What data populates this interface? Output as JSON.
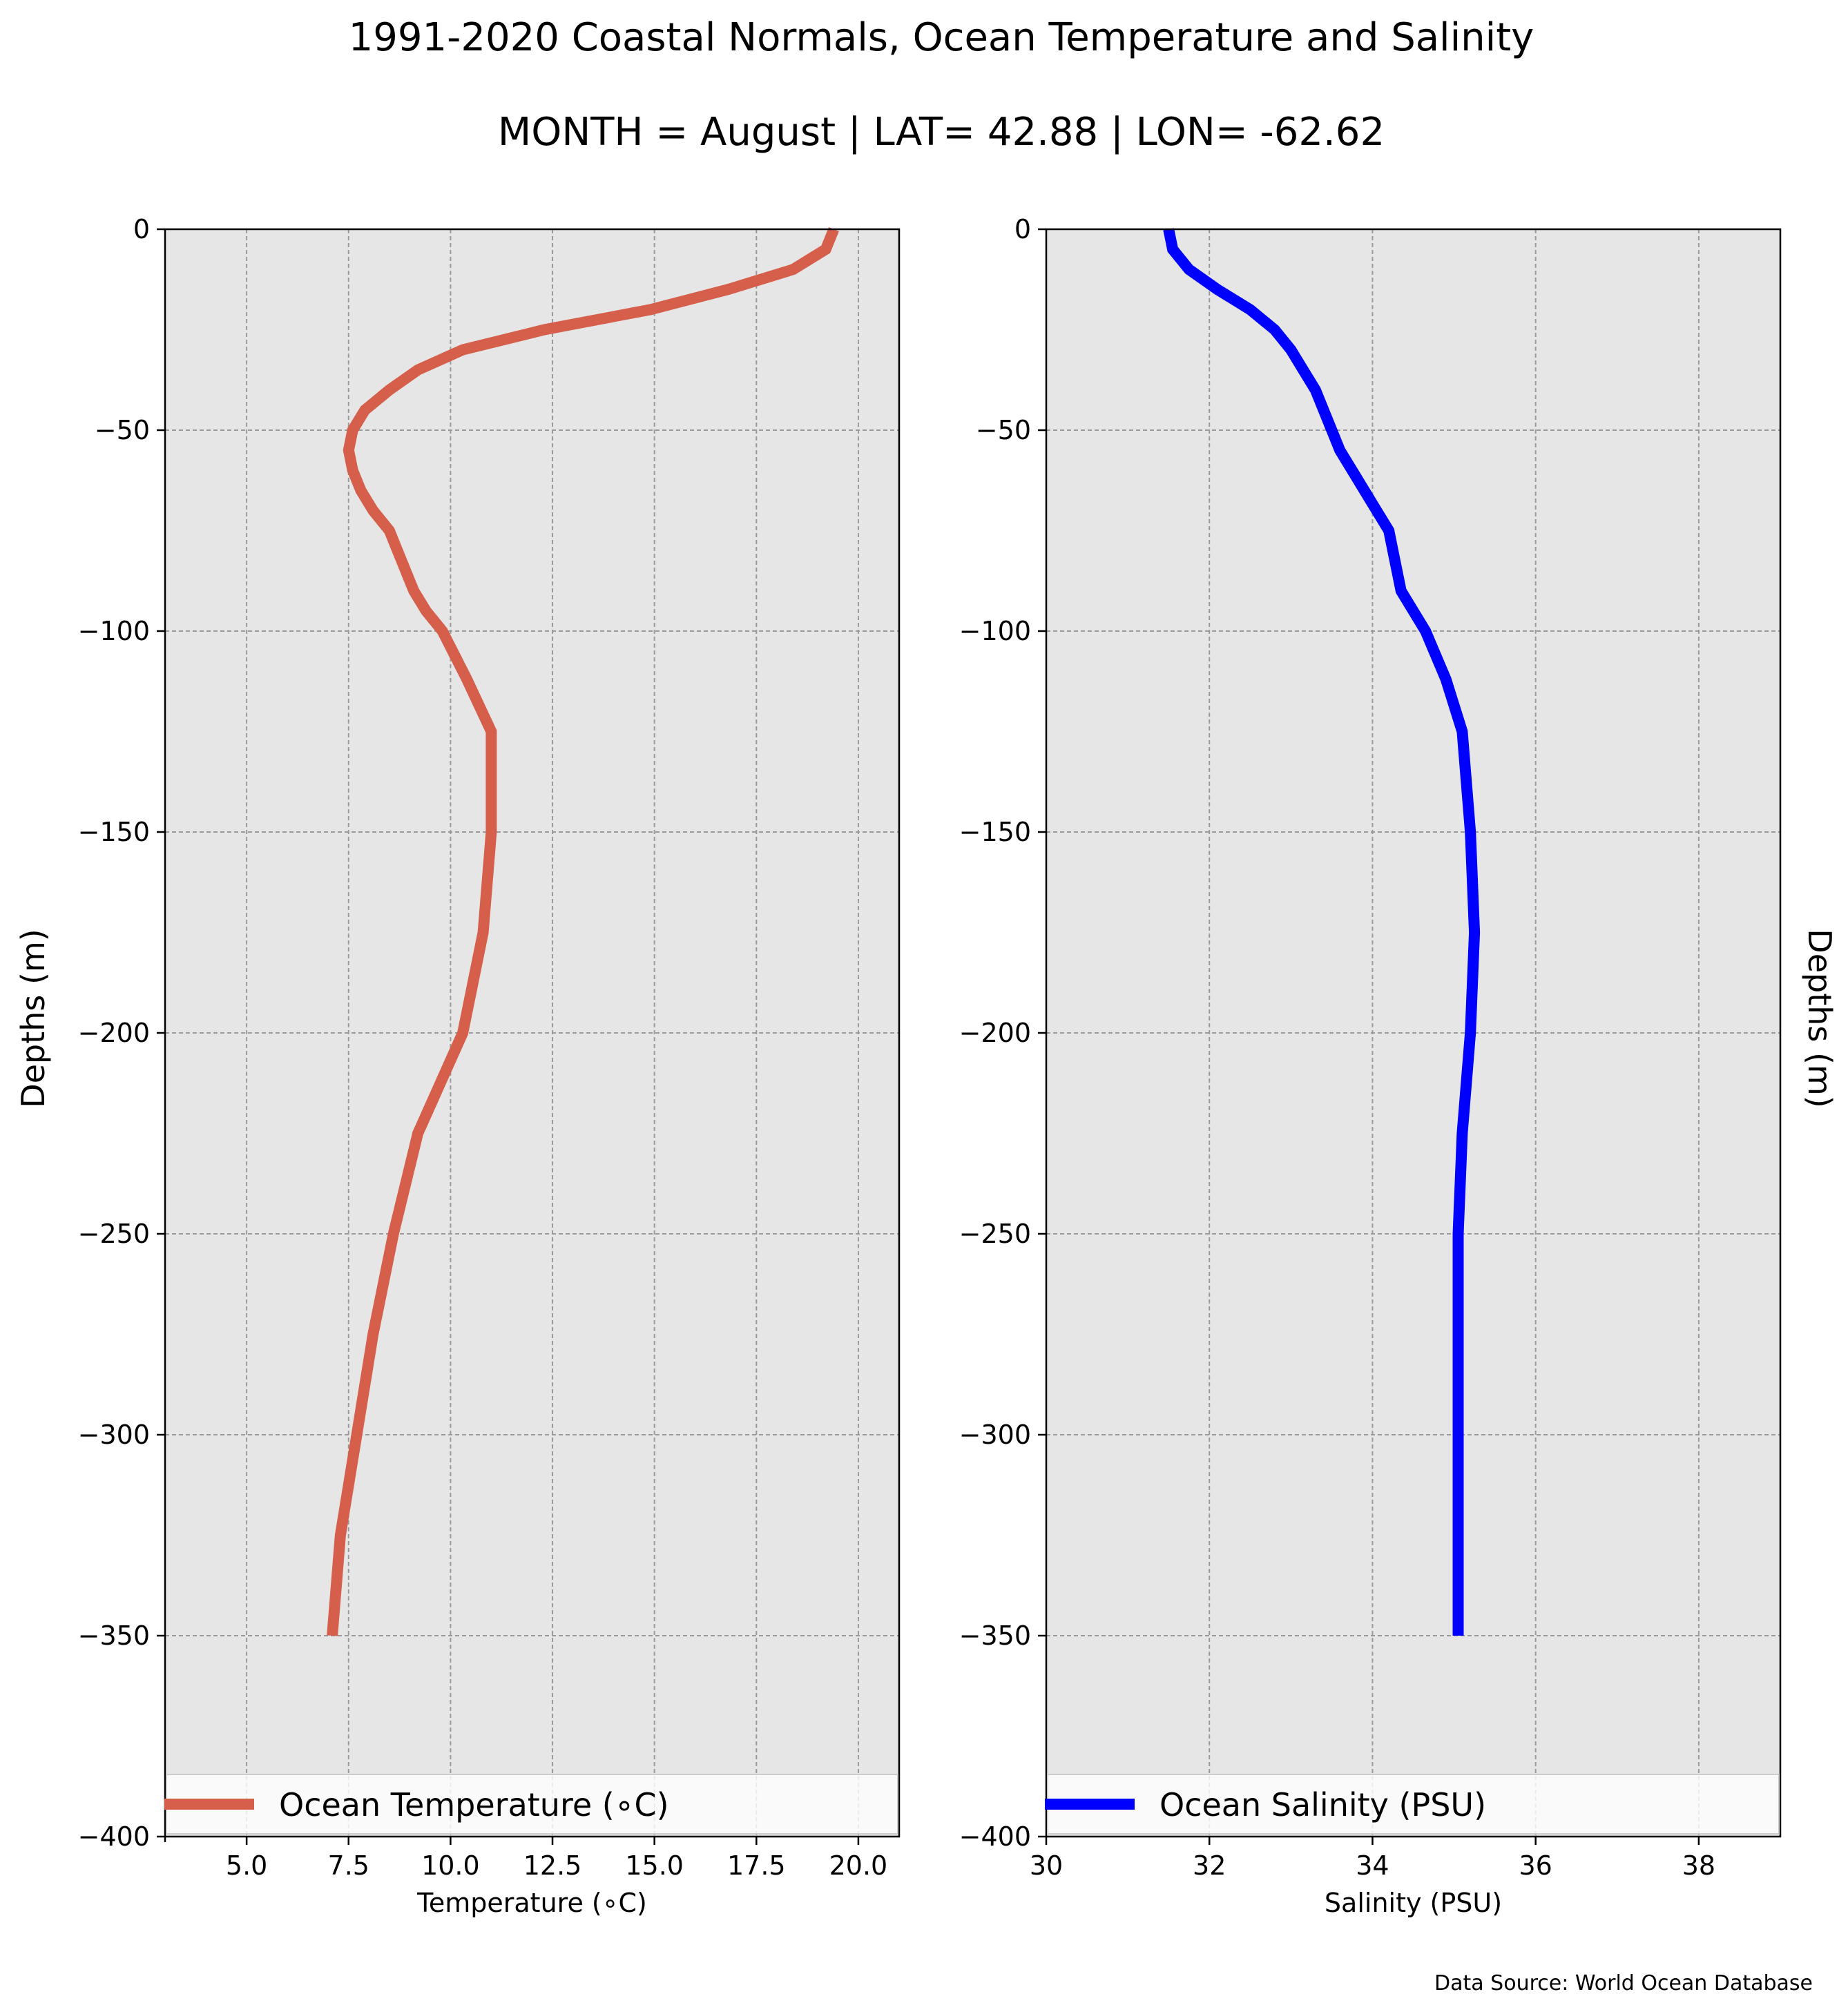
{
  "title": "1991-2020 Coastal Normals, Ocean Temperature and Salinity",
  "subtitle": "MONTH = August | LAT= 42.88 | LON= -62.62",
  "source": "Data Source: World Ocean Database",
  "chart_data": [
    {
      "type": "line",
      "xlabel": "Temperature (∘C)",
      "ylabel": "Depths (m)",
      "xlim": [
        3,
        21
      ],
      "ylim": [
        -400,
        0
      ],
      "xticks": [
        5.0,
        7.5,
        10.0,
        12.5,
        15.0,
        17.5,
        20.0
      ],
      "xtick_labels": [
        "5.0",
        "7.5",
        "10.0",
        "12.5",
        "15.0",
        "17.5",
        "20.0"
      ],
      "yticks": [
        0,
        -50,
        -100,
        -150,
        -200,
        -250,
        -300,
        -350,
        -400
      ],
      "ytick_labels": [
        "0",
        "−50",
        "−100",
        "−150",
        "−200",
        "−250",
        "−300",
        "−350",
        "−400"
      ],
      "grid": true,
      "legend_position": "bottom",
      "background_color": "#e6e6e6",
      "series": [
        {
          "name": "Ocean Temperature (∘C)",
          "color": "#d65f4c",
          "x": [
            19.4,
            19.2,
            18.4,
            16.8,
            14.9,
            12.3,
            10.3,
            9.2,
            8.5,
            7.9,
            7.6,
            7.5,
            7.6,
            7.8,
            8.1,
            8.5,
            8.7,
            9.1,
            9.4,
            9.8,
            10.4,
            11.0,
            11.0,
            10.8,
            10.3,
            9.2,
            8.6,
            8.1,
            7.7,
            7.3,
            7.1
          ],
          "y": [
            0,
            -5,
            -10,
            -15,
            -20,
            -25,
            -30,
            -35,
            -40,
            -45,
            -50,
            -55,
            -60,
            -65,
            -70,
            -75,
            -80,
            -90,
            -95,
            -100,
            -112,
            -125,
            -150,
            -175,
            -200,
            -225,
            -250,
            -275,
            -300,
            -325,
            -350
          ]
        }
      ]
    },
    {
      "type": "line",
      "xlabel": "Salinity (PSU)",
      "ylabel": "Depths (m)",
      "xlim": [
        30,
        39
      ],
      "ylim": [
        -400,
        0
      ],
      "xticks": [
        30,
        32,
        34,
        36,
        38
      ],
      "xtick_labels": [
        "30",
        "32",
        "34",
        "36",
        "38"
      ],
      "yticks": [
        0,
        -50,
        -100,
        -150,
        -200,
        -250,
        -300,
        -350,
        -400
      ],
      "ytick_labels": [
        "0",
        "−50",
        "−100",
        "−150",
        "−200",
        "−250",
        "−300",
        "−350",
        "−400"
      ],
      "grid": true,
      "legend_position": "bottom",
      "background_color": "#e6e6e6",
      "series": [
        {
          "name": "Ocean Salinity (PSU)",
          "color": "#0000ff",
          "x": [
            31.5,
            31.55,
            31.75,
            32.1,
            32.5,
            32.8,
            33.0,
            33.15,
            33.3,
            33.4,
            33.5,
            33.6,
            33.75,
            33.9,
            34.05,
            34.2,
            34.25,
            34.35,
            34.5,
            34.65,
            34.9,
            35.1,
            35.2,
            35.25,
            35.2,
            35.1,
            35.05,
            35.05,
            35.05,
            35.05,
            35.05
          ],
          "y": [
            0,
            -5,
            -10,
            -15,
            -20,
            -25,
            -30,
            -35,
            -40,
            -45,
            -50,
            -55,
            -60,
            -65,
            -70,
            -75,
            -80,
            -90,
            -95,
            -100,
            -112,
            -125,
            -150,
            -175,
            -200,
            -225,
            -250,
            -275,
            -300,
            -325,
            -350
          ]
        }
      ]
    }
  ]
}
